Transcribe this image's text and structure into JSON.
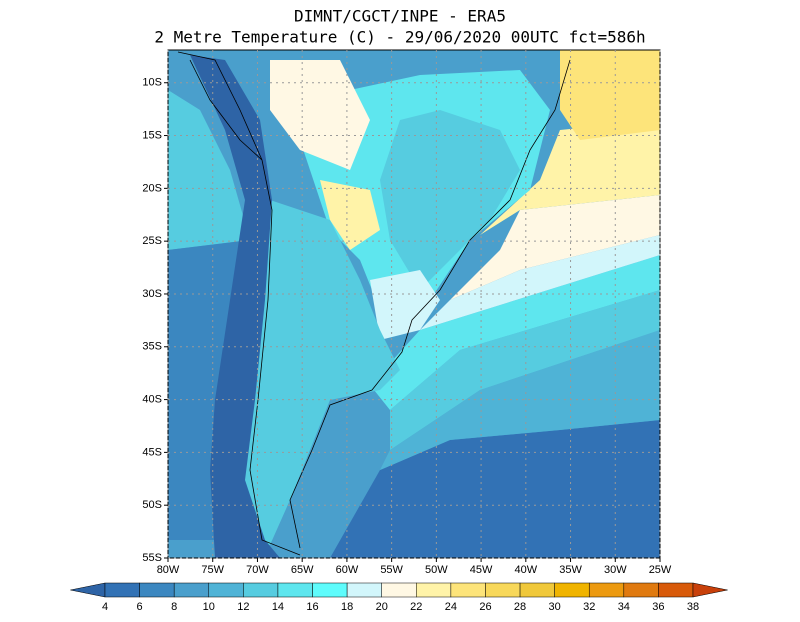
{
  "header": {
    "title_lines": [
      "DIMNT/CGCT/INPE -  ERA5",
      "2 Metre Temperature (C) -  29/06/2020 00UTC fct=586h"
    ]
  },
  "map": {
    "lon_range": [
      -80,
      -25
    ],
    "lat_range": [
      -55,
      -6.9
    ],
    "lat_ticks": [
      {
        "value": -10,
        "label": "10S"
      },
      {
        "value": -15,
        "label": "15S"
      },
      {
        "value": -20,
        "label": "20S"
      },
      {
        "value": -25,
        "label": "25S"
      },
      {
        "value": -30,
        "label": "30S"
      },
      {
        "value": -35,
        "label": "35S"
      },
      {
        "value": -40,
        "label": "40S"
      },
      {
        "value": -45,
        "label": "45S"
      },
      {
        "value": -50,
        "label": "50S"
      },
      {
        "value": -55,
        "label": "55S"
      }
    ],
    "lon_ticks": [
      {
        "value": -80,
        "label": "80W"
      },
      {
        "value": -75,
        "label": "75W"
      },
      {
        "value": -70,
        "label": "70W"
      },
      {
        "value": -65,
        "label": "65W"
      },
      {
        "value": -60,
        "label": "60W"
      },
      {
        "value": -55,
        "label": "55W"
      },
      {
        "value": -50,
        "label": "50W"
      },
      {
        "value": -45,
        "label": "45W"
      },
      {
        "value": -40,
        "label": "40W"
      },
      {
        "value": -35,
        "label": "35W"
      },
      {
        "value": -30,
        "label": "30W"
      },
      {
        "value": -25,
        "label": "25W"
      }
    ]
  },
  "colorbar": {
    "levels": [
      4,
      6,
      8,
      10,
      12,
      14,
      16,
      18,
      20,
      22,
      24,
      26,
      28,
      30,
      32,
      34,
      36,
      38
    ],
    "colors": [
      "#2e64a6",
      "#3272b5",
      "#3b87c0",
      "#4a9fcc",
      "#4fb3d6",
      "#56cce0",
      "#5ee6ee",
      "#5efcfc",
      "#d2f6fb",
      "#fff8e4",
      "#fff3a8",
      "#fde47a",
      "#f8d85a",
      "#f0c83a",
      "#f0b400",
      "#ec9a10",
      "#e07a10",
      "#d85a0a",
      "#c8400a"
    ]
  }
}
